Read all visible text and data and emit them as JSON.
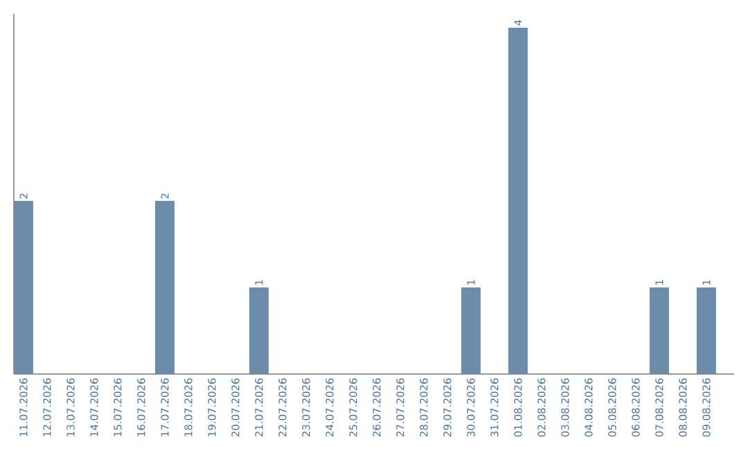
{
  "chart_data": {
    "type": "bar",
    "categories": [
      "11.07.2026",
      "12.07.2026",
      "13.07.2026",
      "14.07.2026",
      "15.07.2026",
      "16.07.2026",
      "17.07.2026",
      "18.07.2026",
      "19.07.2026",
      "20.07.2026",
      "21.07.2026",
      "22.07.2026",
      "23.07.2026",
      "24.07.2026",
      "25.07.2026",
      "26.07.2026",
      "27.07.2026",
      "28.07.2026",
      "29.07.2026",
      "30.07.2026",
      "31.07.2026",
      "01.08.2026",
      "02.08.2026",
      "03.08.2026",
      "04.08.2026",
      "05.08.2026",
      "06.08.2026",
      "07.08.2026",
      "08.08.2026",
      "09.08.2026"
    ],
    "values": [
      2,
      0,
      0,
      0,
      0,
      0,
      2,
      0,
      0,
      0,
      1,
      0,
      0,
      0,
      0,
      0,
      0,
      0,
      0,
      1,
      0,
      4,
      0,
      0,
      0,
      0,
      0,
      1,
      0,
      1
    ],
    "value_labels": [
      "2",
      null,
      null,
      null,
      null,
      null,
      "2",
      null,
      null,
      null,
      "1",
      null,
      null,
      null,
      null,
      null,
      null,
      null,
      null,
      "1",
      null,
      "4",
      null,
      null,
      null,
      null,
      null,
      "1",
      null,
      "1"
    ],
    "color": "#6b8cab",
    "ylim": [
      0,
      4.16
    ],
    "tick_labels": "x"
  }
}
